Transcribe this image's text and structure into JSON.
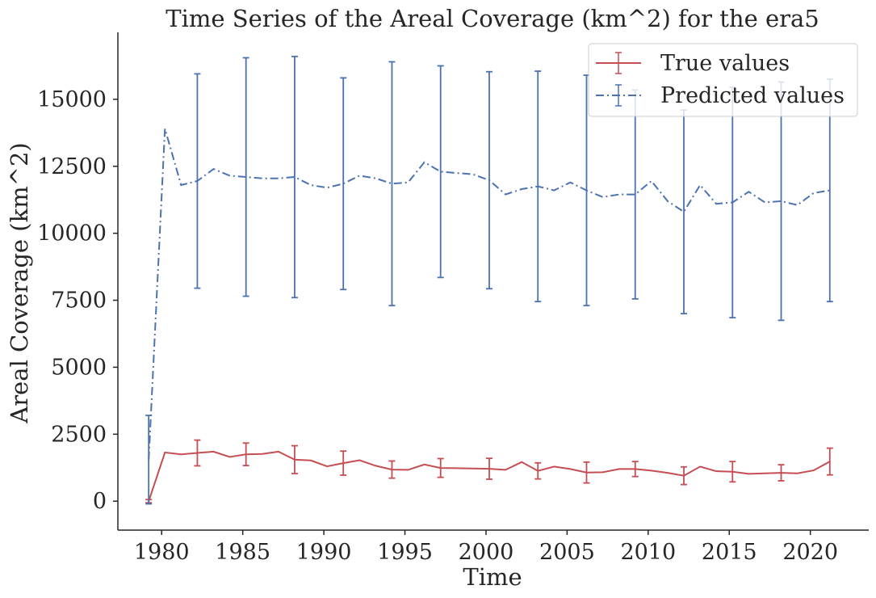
{
  "chart_data": {
    "type": "line",
    "title": "Time Series of the Areal Coverage (km^2) for the era5",
    "xlabel": "Time",
    "ylabel": "Areal Coverage (km^2)",
    "xlim": [
      1977.3,
      2023.6
    ],
    "ylim": [
      -1080,
      17500
    ],
    "x_ticks": [
      1980,
      1985,
      1990,
      1995,
      2000,
      2005,
      2010,
      2015,
      2020
    ],
    "x_tick_labels": [
      "1980",
      "1985",
      "1990",
      "1995",
      "2000",
      "2005",
      "2010",
      "2015",
      "2020"
    ],
    "y_ticks": [
      0,
      2500,
      5000,
      7500,
      10000,
      12500,
      15000
    ],
    "y_tick_labels": [
      "0",
      "2500",
      "5000",
      "7500",
      "10000",
      "12500",
      "15000"
    ],
    "grid": false,
    "legend_position": "top-right",
    "x": [
      1979.2,
      1980.2,
      1981.2,
      1982.2,
      1983.2,
      1984.2,
      1985.2,
      1986.2,
      1987.2,
      1988.2,
      1989.2,
      1990.2,
      1991.2,
      1992.2,
      1993.2,
      1994.2,
      1995.2,
      1996.2,
      1997.2,
      1998.2,
      1999.2,
      2000.2,
      2001.2,
      2002.2,
      2003.2,
      2004.2,
      2005.2,
      2006.2,
      2007.2,
      2008.2,
      2009.2,
      2010.2,
      2011.2,
      2012.2,
      2013.2,
      2014.2,
      2015.2,
      2016.2,
      2017.2,
      2018.2,
      2019.2,
      2020.2,
      2021.2
    ],
    "series": [
      {
        "name": "True values",
        "color": "#c44e52",
        "line_style": "solid",
        "values": [
          0,
          1820,
          1750,
          1800,
          1850,
          1650,
          1750,
          1760,
          1850,
          1550,
          1520,
          1300,
          1420,
          1530,
          1320,
          1180,
          1170,
          1370,
          1240,
          1230,
          1220,
          1210,
          1170,
          1460,
          1130,
          1290,
          1200,
          1070,
          1080,
          1200,
          1200,
          1140,
          1060,
          950,
          1290,
          1120,
          1100,
          1020,
          1040,
          1060,
          1040,
          1150,
          1480
        ],
        "error_bars": [
          {
            "x": 1979.2,
            "y": 0,
            "err": 60
          },
          {
            "x": 1982.2,
            "y": 1800,
            "err": 480
          },
          {
            "x": 1985.2,
            "y": 1750,
            "err": 420
          },
          {
            "x": 1988.2,
            "y": 1550,
            "err": 520
          },
          {
            "x": 1991.2,
            "y": 1420,
            "err": 450
          },
          {
            "x": 1994.2,
            "y": 1180,
            "err": 320
          },
          {
            "x": 1997.2,
            "y": 1240,
            "err": 350
          },
          {
            "x": 2000.2,
            "y": 1210,
            "err": 390
          },
          {
            "x": 2003.2,
            "y": 1130,
            "err": 300
          },
          {
            "x": 2006.2,
            "y": 1070,
            "err": 390
          },
          {
            "x": 2009.2,
            "y": 1200,
            "err": 280
          },
          {
            "x": 2012.2,
            "y": 950,
            "err": 330
          },
          {
            "x": 2015.2,
            "y": 1100,
            "err": 380
          },
          {
            "x": 2018.2,
            "y": 1060,
            "err": 300
          },
          {
            "x": 2021.2,
            "y": 1480,
            "err": 500
          }
        ]
      },
      {
        "name": "Predicted values",
        "color": "#4c72b0",
        "line_style": "dashdot",
        "values": [
          1550,
          13900,
          11800,
          11950,
          12400,
          12150,
          12100,
          12050,
          12050,
          12100,
          11800,
          11700,
          11850,
          12150,
          12050,
          11850,
          11900,
          12650,
          12300,
          12250,
          12200,
          11980,
          11450,
          11650,
          11750,
          11600,
          11900,
          11600,
          11350,
          11450,
          11450,
          11950,
          11200,
          10800,
          11800,
          11100,
          11150,
          11550,
          11150,
          11200,
          11050,
          11500,
          11600
        ],
        "error_bars": [
          {
            "x": 1979.2,
            "y": 1550,
            "err": 1650
          },
          {
            "x": 1982.2,
            "y": 11950,
            "err": 4000
          },
          {
            "x": 1985.2,
            "y": 12100,
            "err": 4450
          },
          {
            "x": 1988.2,
            "y": 12100,
            "err": 4500
          },
          {
            "x": 1991.2,
            "y": 11850,
            "err": 3950
          },
          {
            "x": 1994.2,
            "y": 11850,
            "err": 4550
          },
          {
            "x": 1997.2,
            "y": 12300,
            "err": 3950
          },
          {
            "x": 2000.2,
            "y": 11980,
            "err": 4050
          },
          {
            "x": 2003.2,
            "y": 11750,
            "err": 4300
          },
          {
            "x": 2006.2,
            "y": 11600,
            "err": 4300
          },
          {
            "x": 2009.2,
            "y": 11450,
            "err": 3900
          },
          {
            "x": 2012.2,
            "y": 10800,
            "err": 3800
          },
          {
            "x": 2015.2,
            "y": 11150,
            "err": 4300
          },
          {
            "x": 2018.2,
            "y": 11200,
            "err": 4450
          },
          {
            "x": 2021.2,
            "y": 11600,
            "err": 4150
          }
        ]
      }
    ]
  }
}
